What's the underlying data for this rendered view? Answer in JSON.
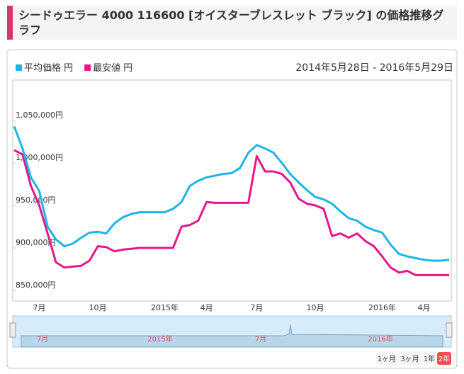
{
  "chart_data": {
    "type": "line",
    "title": "シードゥエラー 4000 116600 [オイスターブレスレット ブラック] の価格推移グラフ",
    "subtitle": "2014年5月28日 - 2016年5月29日",
    "categories": [
      null,
      null,
      null,
      "7月",
      null,
      null,
      null,
      null,
      null,
      null,
      "10月",
      null,
      null,
      null,
      null,
      null,
      null,
      null,
      "2015年",
      null,
      null,
      null,
      null,
      "4月",
      null,
      null,
      null,
      null,
      null,
      "7月",
      null,
      null,
      null,
      null,
      null,
      null,
      "10月",
      null,
      null,
      null,
      null,
      null,
      null,
      null,
      "2016年",
      null,
      null,
      null,
      null,
      "4月",
      null,
      null,
      null
    ],
    "series": [
      {
        "name": "平均価格 円",
        "color": "#1ab6ea",
        "values": [
          1043000,
          1017000,
          983000,
          967000,
          925000,
          910000,
          902000,
          905000,
          912000,
          918000,
          919000,
          917000,
          929000,
          936000,
          940000,
          942000,
          942000,
          942000,
          942000,
          946000,
          954000,
          973000,
          979000,
          983000,
          985000,
          987000,
          988000,
          994000,
          1012000,
          1021000,
          1017000,
          1012000,
          1000000,
          987000,
          977000,
          968000,
          960000,
          957000,
          952000,
          943000,
          935000,
          932000,
          925000,
          921000,
          918000,
          904000,
          893000,
          890000,
          888000,
          886000,
          885000,
          885000,
          886000
        ]
      },
      {
        "name": "最安値 円",
        "color": "#e6168a",
        "values": [
          1015000,
          1010000,
          973000,
          950000,
          917000,
          883000,
          877000,
          878000,
          879000,
          885000,
          902000,
          901000,
          896000,
          898000,
          899000,
          900000,
          900000,
          900000,
          900000,
          900000,
          925000,
          927000,
          932000,
          954000,
          953000,
          953000,
          953000,
          953000,
          953000,
          1008000,
          990000,
          990000,
          987000,
          977000,
          958000,
          952000,
          950000,
          946000,
          914000,
          917000,
          912000,
          917000,
          908000,
          902000,
          890000,
          877000,
          871000,
          873000,
          868000,
          868000,
          868000,
          868000,
          868000
        ]
      }
    ],
    "ylim": [
      840000,
      1100000
    ],
    "yticks": [
      {
        "value": 850000,
        "label": "850,000円"
      },
      {
        "value": 900000,
        "label": "900,000円"
      },
      {
        "value": 950000,
        "label": "950,000円"
      },
      {
        "value": 1000000,
        "label": "1,000,000円"
      },
      {
        "value": 1050000,
        "label": "1,050,000円"
      }
    ],
    "grid": false
  },
  "navigator": {
    "labels": [
      "7月",
      "2015年",
      "7月",
      "2016年"
    ]
  },
  "range_buttons": [
    "1ヶ月",
    "3ヶ月",
    "1年",
    "2年"
  ]
}
